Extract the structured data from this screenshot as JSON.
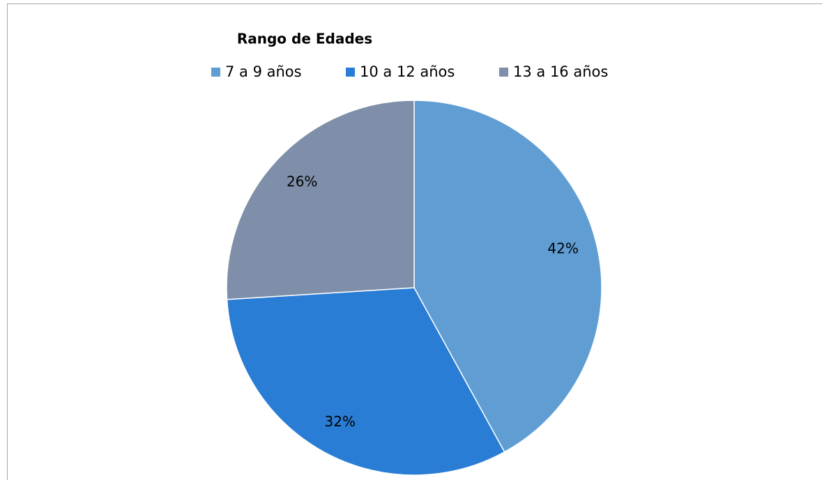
{
  "chart_data": {
    "type": "pie",
    "title": "Rango de Edades",
    "categories": [
      "7 a 9 años",
      "10 a 12 años",
      "13 a 16 años"
    ],
    "values": [
      42,
      32,
      26
    ],
    "value_labels": [
      "42%",
      "32%",
      "26%"
    ],
    "colors": [
      "#5f9dd3",
      "#2a7dd4",
      "#7f8fa9"
    ],
    "legend": "top"
  }
}
